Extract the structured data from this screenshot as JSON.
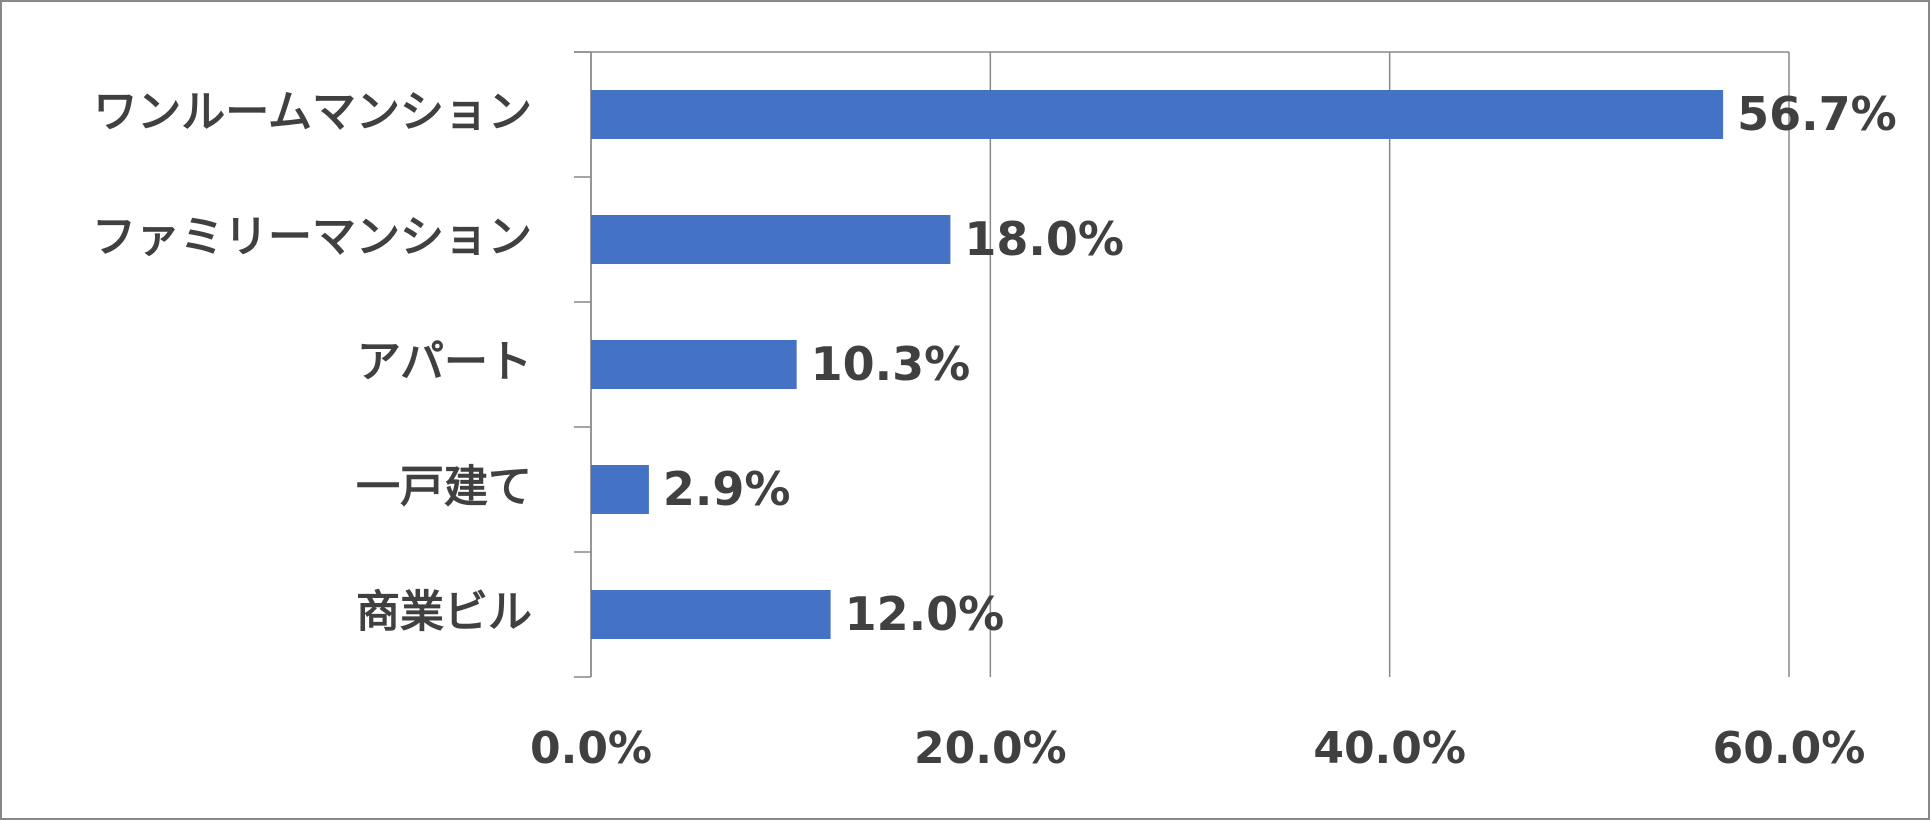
{
  "chart_data": {
    "type": "bar",
    "orientation": "horizontal",
    "categories": [
      "ワンルームマンション",
      "ファミリーマンション",
      "アパート",
      "一戸建て",
      "商業ビル"
    ],
    "values": [
      56.7,
      18.0,
      10.3,
      2.9,
      12.0
    ],
    "value_labels": [
      "56.7%",
      "18.0%",
      "10.3%",
      "2.9%",
      "12.0%"
    ],
    "color": "#4472c4",
    "xlim": [
      0,
      60
    ],
    "xticks": [
      {
        "value": 0,
        "label": "0.0%"
      },
      {
        "value": 20,
        "label": "20.0%"
      },
      {
        "value": 40,
        "label": "40.0%"
      },
      {
        "value": 60,
        "label": "60.0%"
      }
    ],
    "grid": true
  }
}
